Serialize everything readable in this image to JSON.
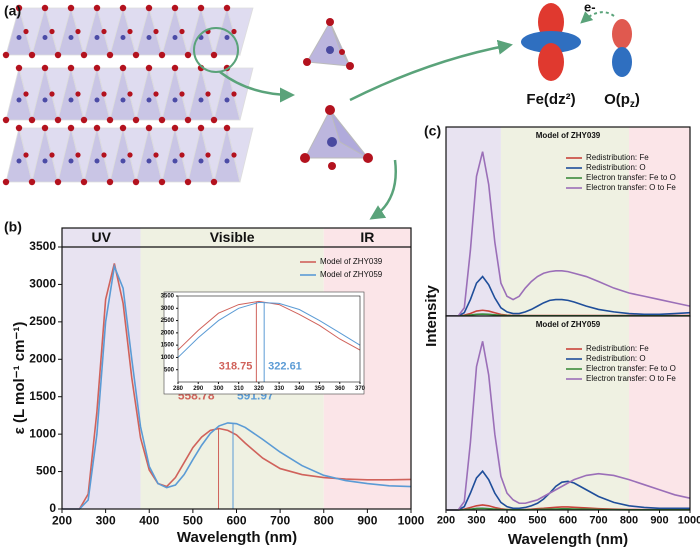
{
  "figure": {
    "panel_labels": [
      "(a)",
      "(b)",
      "(c)"
    ],
    "electron": "e-",
    "fe_orbital": "Fe(dz²)",
    "o_orbital": {
      "base": "O(p",
      "sub": "z",
      "end": ")"
    }
  },
  "chart_data": [
    {
      "type": "line",
      "x_label": "Wavelength (nm)",
      "y_label": "ε (L mol⁻¹ cm⁻¹)",
      "xlim": [
        200,
        1000
      ],
      "ylim": [
        0,
        3500
      ],
      "xticks": [
        200,
        300,
        400,
        500,
        600,
        700,
        800,
        900,
        1000
      ],
      "yticks": [
        0,
        500,
        1000,
        1500,
        2000,
        2500,
        3000,
        3500
      ],
      "regions": [
        {
          "label": "UV",
          "from": 200,
          "to": 380,
          "color": "#e8e3f1"
        },
        {
          "label": "Visible",
          "from": 380,
          "to": 800,
          "color": "#eff1e2"
        },
        {
          "label": "IR",
          "from": 800,
          "to": 1000,
          "color": "#fbe5e8"
        }
      ],
      "x": [
        200,
        220,
        240,
        260,
        280,
        300,
        320,
        340,
        360,
        380,
        400,
        420,
        440,
        460,
        480,
        500,
        520,
        540,
        560,
        580,
        600,
        620,
        660,
        700,
        750,
        800,
        850,
        900,
        950,
        1000
      ],
      "series": [
        {
          "name": "Model of ZHY039",
          "color": "#d0625b",
          "peak": 558.78,
          "values": [
            0,
            0,
            0,
            200,
            1300,
            2800,
            3280,
            2750,
            1750,
            950,
            520,
            340,
            300,
            420,
            620,
            820,
            960,
            1050,
            1075,
            1050,
            990,
            880,
            680,
            540,
            460,
            420,
            400,
            390,
            390,
            395
          ]
        },
        {
          "name": "Model of ZHY059",
          "color": "#5b9bd5",
          "peak": 591.97,
          "values": [
            0,
            0,
            0,
            120,
            1000,
            2500,
            3240,
            2950,
            2000,
            1100,
            570,
            340,
            285,
            320,
            460,
            660,
            850,
            1010,
            1110,
            1150,
            1140,
            1090,
            930,
            760,
            580,
            450,
            380,
            340,
            310,
            300
          ]
        }
      ]
    },
    {
      "type": "line",
      "xlim": [
        280,
        370
      ],
      "ylim": [
        0,
        3500
      ],
      "xticks": [
        280,
        290,
        300,
        310,
        320,
        330,
        340,
        350,
        360,
        370
      ],
      "yticks": [
        500,
        1000,
        1500,
        2000,
        2500,
        3000,
        3500
      ],
      "x": [
        280,
        290,
        300,
        310,
        320,
        330,
        340,
        350,
        360,
        370
      ],
      "series": [
        {
          "color": "#d0625b",
          "peak": 318.75,
          "values": [
            1300,
            2100,
            2800,
            3150,
            3280,
            3150,
            2750,
            2300,
            1750,
            1300
          ]
        },
        {
          "color": "#5b9bd5",
          "peak": 322.61,
          "values": [
            1000,
            1800,
            2500,
            3000,
            3240,
            3200,
            2950,
            2500,
            2000,
            1500
          ]
        }
      ]
    },
    {
      "type": "line",
      "title": "Model of ZHY039",
      "xlim": [
        200,
        1000
      ],
      "ylim": [
        0,
        115
      ],
      "regions": [
        {
          "from": 200,
          "to": 380,
          "color": "#e8e3f1"
        },
        {
          "from": 380,
          "to": 800,
          "color": "#eff1e2"
        },
        {
          "from": 800,
          "to": 1000,
          "color": "#fbe5e8"
        }
      ],
      "x": [
        200,
        220,
        240,
        260,
        280,
        300,
        320,
        340,
        360,
        380,
        400,
        420,
        440,
        460,
        480,
        500,
        520,
        540,
        560,
        580,
        600,
        620,
        660,
        700,
        750,
        800,
        850,
        900,
        950,
        1000
      ],
      "series": [
        {
          "name": "Redistribution: Fe",
          "color": "#c9433b",
          "values": [
            0,
            0,
            0,
            0.5,
            1.5,
            3,
            3.5,
            3,
            2,
            1,
            0.5,
            0.3,
            0.3,
            0.3,
            0.3,
            0.3,
            0.3,
            0.3,
            0.3,
            0.3,
            0.3,
            0.3,
            0.3,
            0.3,
            0.3,
            0.3,
            0.3,
            0.3,
            0.3,
            0.3
          ]
        },
        {
          "name": "Redistribution: O",
          "color": "#1f4e9a",
          "values": [
            0,
            0,
            0,
            2,
            10,
            20,
            24,
            19,
            11,
            5,
            2.5,
            1.5,
            1.5,
            2.5,
            4,
            6,
            8,
            9.5,
            10,
            10,
            9.5,
            8.5,
            6,
            4,
            2.5,
            1.5,
            1,
            1,
            1.5,
            2
          ]
        },
        {
          "name": "Electron transfer: Fe to O",
          "color": "#3d8b3d",
          "values": [
            0,
            0,
            0,
            0.2,
            0.6,
            1,
            1.2,
            1,
            0.7,
            0.4,
            0.2,
            0.1,
            0.1,
            0.1,
            0.1,
            0.1,
            0.1,
            0.1,
            0.1,
            0.1,
            0.1,
            0.1,
            0.1,
            0.1,
            0.1,
            0.1,
            0.1,
            0.1,
            0.1,
            0.1
          ]
        },
        {
          "name": "Electron transfer: O to Fe",
          "color": "#9b6fb8",
          "values": [
            0,
            0,
            0,
            5,
            40,
            85,
            100,
            80,
            45,
            20,
            12,
            10,
            12,
            17,
            21,
            24,
            26,
            27,
            27.5,
            27.5,
            27,
            26,
            24,
            21,
            17,
            14,
            12,
            10,
            8,
            6
          ]
        }
      ]
    },
    {
      "type": "line",
      "title": "Model of ZHY059",
      "x_label": "Wavelength (nm)",
      "y_label": "Intensity",
      "xlim": [
        200,
        1000
      ],
      "ylim": [
        0,
        115
      ],
      "xticks": [
        200,
        300,
        400,
        500,
        600,
        700,
        800,
        900,
        1000
      ],
      "regions": [
        {
          "from": 200,
          "to": 380,
          "color": "#e8e3f1"
        },
        {
          "from": 380,
          "to": 800,
          "color": "#eff1e2"
        },
        {
          "from": 800,
          "to": 1000,
          "color": "#fbe5e8"
        }
      ],
      "x": [
        200,
        220,
        240,
        260,
        280,
        300,
        320,
        340,
        360,
        380,
        400,
        420,
        440,
        460,
        480,
        500,
        520,
        540,
        560,
        580,
        600,
        620,
        660,
        700,
        750,
        800,
        850,
        900,
        950,
        1000
      ],
      "series": [
        {
          "name": "Redistribution: Fe",
          "color": "#c9433b",
          "values": [
            0,
            0,
            0,
            0.5,
            1.5,
            2.5,
            3,
            2.5,
            1.5,
            0.7,
            0.3,
            0.2,
            0.2,
            0.3,
            0.5,
            0.8,
            1,
            1.3,
            1.6,
            1.8,
            1.8,
            1.6,
            1.2,
            0.8,
            0.5,
            0.3,
            0.2,
            0.2,
            0.2,
            0.2
          ]
        },
        {
          "name": "Redistribution: O",
          "color": "#1f4e9a",
          "values": [
            0,
            0,
            0,
            2,
            10,
            19,
            23,
            18,
            10,
            4.5,
            2,
            1,
            1,
            1.5,
            2.5,
            4,
            6.5,
            10,
            14,
            16.5,
            17,
            16,
            12,
            8,
            4.5,
            2.5,
            1.5,
            1,
            1,
            1
          ]
        },
        {
          "name": "Electron transfer: Fe to O",
          "color": "#3d8b3d",
          "values": [
            0,
            0,
            0,
            0.2,
            0.5,
            0.9,
            1,
            0.8,
            0.5,
            0.3,
            0.2,
            0.1,
            0.1,
            0.1,
            0.2,
            0.3,
            0.4,
            0.5,
            0.6,
            0.7,
            0.7,
            0.6,
            0.5,
            0.3,
            0.2,
            0.1,
            0.1,
            0.1,
            0.1,
            0.1
          ]
        },
        {
          "name": "Electron transfer: O to Fe",
          "color": "#9b6fb8",
          "values": [
            0,
            0,
            0,
            5,
            40,
            85,
            100,
            80,
            45,
            20,
            10,
            6,
            4,
            4,
            5,
            6,
            8,
            10,
            12,
            14,
            16,
            18,
            20.5,
            21.5,
            20.5,
            18,
            15,
            12,
            9,
            7
          ]
        }
      ]
    }
  ]
}
